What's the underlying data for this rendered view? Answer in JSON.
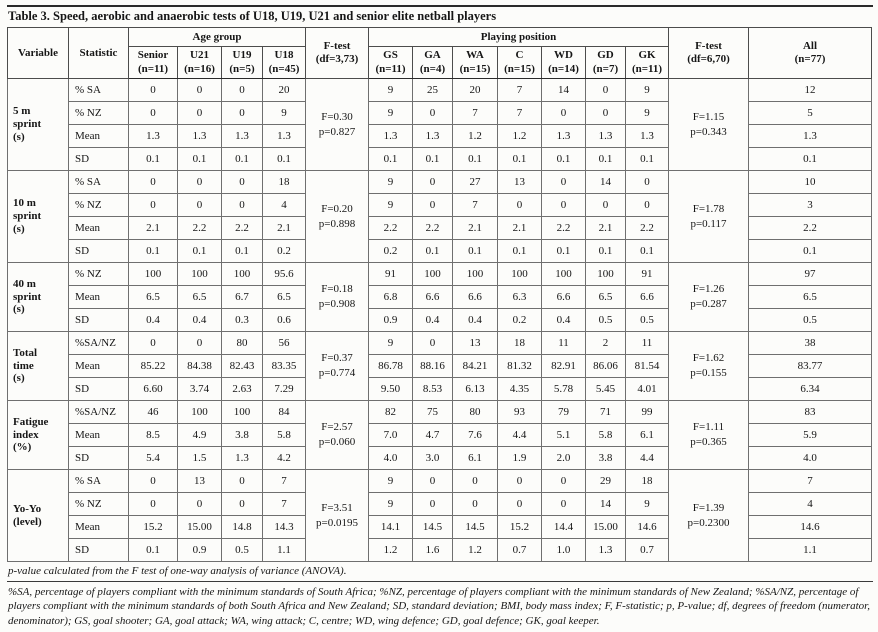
{
  "title": "Table 3. Speed, aerobic and anaerobic tests of U18, U19, U21 and senior elite netball players",
  "header": {
    "variable_label": "Variable",
    "statistic_label": "Statistic",
    "age_group_label": "Age group",
    "playing_position_label": "Playing position",
    "age_columns": [
      {
        "name": "Senior",
        "n": "(n=11)"
      },
      {
        "name": "U21",
        "n": "(n=16)"
      },
      {
        "name": "U19",
        "n": "(n=5)"
      },
      {
        "name": "U18",
        "n": "(n=45)"
      }
    ],
    "ftest_age": {
      "name": "F-test",
      "df": "(df=3,73)"
    },
    "position_columns": [
      {
        "name": "GS",
        "n": "(n=11)"
      },
      {
        "name": "GA",
        "n": "(n=4)"
      },
      {
        "name": "WA",
        "n": "(n=15)"
      },
      {
        "name": "C",
        "n": "(n=15)"
      },
      {
        "name": "WD",
        "n": "(n=14)"
      },
      {
        "name": "GD",
        "n": "(n=7)"
      },
      {
        "name": "GK",
        "n": "(n=11)"
      }
    ],
    "ftest_position": {
      "name": "F-test",
      "df": "(df=6,70)"
    },
    "all_column": {
      "name": "All",
      "n": "(n=77)"
    }
  },
  "groups": [
    {
      "variable": "5 m sprint (s)",
      "variable_lines": [
        "5 m",
        "sprint",
        "(s)"
      ],
      "ftest_age": [
        "F=0.30",
        "p=0.827"
      ],
      "ftest_position": [
        "F=1.15",
        "p=0.343"
      ],
      "rows": [
        {
          "statistic": "% SA",
          "age": [
            "0",
            "0",
            "0",
            "20"
          ],
          "position": [
            "9",
            "25",
            "20",
            "7",
            "14",
            "0",
            "9"
          ],
          "all": "12"
        },
        {
          "statistic": "% NZ",
          "age": [
            "0",
            "0",
            "0",
            "9"
          ],
          "position": [
            "9",
            "0",
            "7",
            "7",
            "0",
            "0",
            "9"
          ],
          "all": "5"
        },
        {
          "statistic": "Mean",
          "age": [
            "1.3",
            "1.3",
            "1.3",
            "1.3"
          ],
          "position": [
            "1.3",
            "1.3",
            "1.2",
            "1.2",
            "1.3",
            "1.3",
            "1.3"
          ],
          "all": "1.3"
        },
        {
          "statistic": "SD",
          "age": [
            "0.1",
            "0.1",
            "0.1",
            "0.1"
          ],
          "position": [
            "0.1",
            "0.1",
            "0.1",
            "0.1",
            "0.1",
            "0.1",
            "0.1"
          ],
          "all": "0.1"
        }
      ]
    },
    {
      "variable": "10 m sprint (s)",
      "variable_lines": [
        "10 m",
        "sprint",
        "(s)"
      ],
      "ftest_age": [
        "F=0.20",
        "p=0.898"
      ],
      "ftest_position": [
        "F=1.78",
        "p=0.117"
      ],
      "rows": [
        {
          "statistic": "% SA",
          "age": [
            "0",
            "0",
            "0",
            "18"
          ],
          "position": [
            "9",
            "0",
            "27",
            "13",
            "0",
            "14",
            "0"
          ],
          "all": "10"
        },
        {
          "statistic": "% NZ",
          "age": [
            "0",
            "0",
            "0",
            "4"
          ],
          "position": [
            "9",
            "0",
            "7",
            "0",
            "0",
            "0",
            "0"
          ],
          "all": "3"
        },
        {
          "statistic": "Mean",
          "age": [
            "2.1",
            "2.2",
            "2.2",
            "2.1"
          ],
          "position": [
            "2.2",
            "2.2",
            "2.1",
            "2.1",
            "2.2",
            "2.1",
            "2.2"
          ],
          "all": "2.2"
        },
        {
          "statistic": "SD",
          "age": [
            "0.1",
            "0.1",
            "0.1",
            "0.2"
          ],
          "position": [
            "0.2",
            "0.1",
            "0.1",
            "0.1",
            "0.1",
            "0.1",
            "0.1"
          ],
          "all": "0.1"
        }
      ]
    },
    {
      "variable": "40 m sprint (s)",
      "variable_lines": [
        "40 m",
        "sprint",
        "(s)"
      ],
      "ftest_age": [
        "F=0.18",
        "p=0.908"
      ],
      "ftest_position": [
        "F=1.26",
        "p=0.287"
      ],
      "rows": [
        {
          "statistic": "% NZ",
          "age": [
            "100",
            "100",
            "100",
            "95.6"
          ],
          "position": [
            "91",
            "100",
            "100",
            "100",
            "100",
            "100",
            "91"
          ],
          "all": "97"
        },
        {
          "statistic": "Mean",
          "age": [
            "6.5",
            "6.5",
            "6.7",
            "6.5"
          ],
          "position": [
            "6.8",
            "6.6",
            "6.6",
            "6.3",
            "6.6",
            "6.5",
            "6.6"
          ],
          "all": "6.5"
        },
        {
          "statistic": "SD",
          "age": [
            "0.4",
            "0.4",
            "0.3",
            "0.6"
          ],
          "position": [
            "0.9",
            "0.4",
            "0.4",
            "0.2",
            "0.4",
            "0.5",
            "0.5"
          ],
          "all": "0.5"
        }
      ]
    },
    {
      "variable": "Total time (s)",
      "variable_lines": [
        "Total",
        "time",
        "(s)"
      ],
      "ftest_age": [
        "F=0.37",
        "p=0.774"
      ],
      "ftest_position": [
        "F=1.62",
        "p=0.155"
      ],
      "rows": [
        {
          "statistic": "%SA/NZ",
          "age": [
            "0",
            "0",
            "80",
            "56"
          ],
          "position": [
            "9",
            "0",
            "13",
            "18",
            "11",
            "2",
            "11"
          ],
          "all": "38"
        },
        {
          "statistic": "Mean",
          "age": [
            "85.22",
            "84.38",
            "82.43",
            "83.35"
          ],
          "position": [
            "86.78",
            "88.16",
            "84.21",
            "81.32",
            "82.91",
            "86.06",
            "81.54"
          ],
          "all": "83.77"
        },
        {
          "statistic": "SD",
          "age": [
            "6.60",
            "3.74",
            "2.63",
            "7.29"
          ],
          "position": [
            "9.50",
            "8.53",
            "6.13",
            "4.35",
            "5.78",
            "5.45",
            "4.01"
          ],
          "all": "6.34"
        }
      ]
    },
    {
      "variable": "Fatigue index (%)",
      "variable_lines": [
        "Fatigue",
        "index",
        "(%)"
      ],
      "ftest_age": [
        "F=2.57",
        "p=0.060"
      ],
      "ftest_position": [
        "F=1.11",
        "p=0.365"
      ],
      "rows": [
        {
          "statistic": "%SA/NZ",
          "age": [
            "46",
            "100",
            "100",
            "84"
          ],
          "position": [
            "82",
            "75",
            "80",
            "93",
            "79",
            "71",
            "99"
          ],
          "all": "83"
        },
        {
          "statistic": "Mean",
          "age": [
            "8.5",
            "4.9",
            "3.8",
            "5.8"
          ],
          "position": [
            "7.0",
            "4.7",
            "7.6",
            "4.4",
            "5.1",
            "5.8",
            "6.1"
          ],
          "all": "5.9"
        },
        {
          "statistic": "SD",
          "age": [
            "5.4",
            "1.5",
            "1.3",
            "4.2"
          ],
          "position": [
            "4.0",
            "3.0",
            "6.1",
            "1.9",
            "2.0",
            "3.8",
            "4.4"
          ],
          "all": "4.0"
        }
      ]
    },
    {
      "variable": "Yo-Yo (level)",
      "variable_lines": [
        "Yo-Yo",
        "(level)"
      ],
      "ftest_age": [
        "F=3.51",
        "p=0.0195"
      ],
      "ftest_position": [
        "F=1.39",
        "p=0.2300"
      ],
      "rows": [
        {
          "statistic": "% SA",
          "age": [
            "0",
            "13",
            "0",
            "7"
          ],
          "position": [
            "9",
            "0",
            "0",
            "0",
            "0",
            "29",
            "18"
          ],
          "all": "7"
        },
        {
          "statistic": "% NZ",
          "age": [
            "0",
            "0",
            "0",
            "7"
          ],
          "position": [
            "9",
            "0",
            "0",
            "0",
            "0",
            "14",
            "9"
          ],
          "all": "4"
        },
        {
          "statistic": "Mean",
          "age": [
            "15.2",
            "15.00",
            "14.8",
            "14.3"
          ],
          "position": [
            "14.1",
            "14.5",
            "14.5",
            "15.2",
            "14.4",
            "15.00",
            "14.6"
          ],
          "all": "14.6"
        },
        {
          "statistic": "SD",
          "age": [
            "0.1",
            "0.9",
            "0.5",
            "1.1"
          ],
          "position": [
            "1.2",
            "1.6",
            "1.2",
            "0.7",
            "1.0",
            "1.3",
            "0.7"
          ],
          "all": "1.1"
        }
      ]
    }
  ],
  "footnotes": {
    "line1": "p-value calculated from the F test of one-way analysis of variance (ANOVA).",
    "paragraph": "%SA, percentage of players compliant with the minimum standards of South Africa; %NZ, percentage of players compliant with the minimum standards of New Zealand; %SA/NZ, percentage of players compliant with the minimum standards of both South Africa and New Zealand; SD, standard deviation; BMI, body mass index; F, F-statistic; p, P-value; df, degrees of freedom (numerator, denominator); GS, goal shooter; GA, goal attack; WA, wing attack; C, centre; WD, wing defence; GD, goal defence; GK, goal keeper."
  }
}
